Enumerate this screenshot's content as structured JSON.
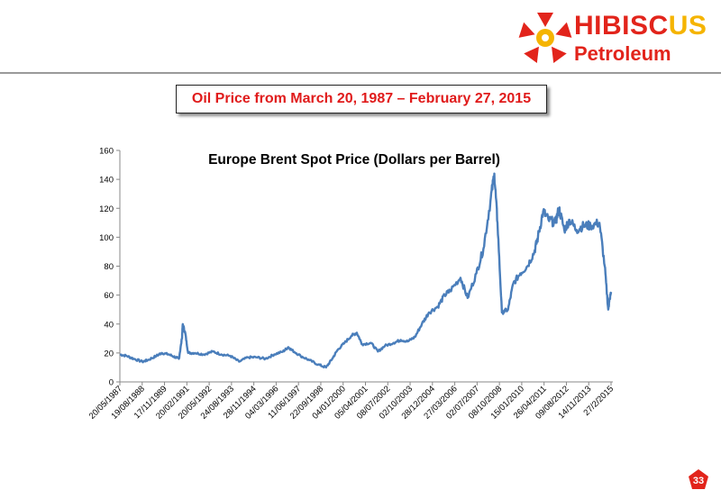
{
  "logo": {
    "word_main": "HIBISCUS",
    "word_main_red": "HIBISC",
    "word_main_yellow": "US",
    "word_sub": "Petroleum",
    "colors": {
      "red": "#e2241b",
      "yellow": "#f5b400"
    },
    "icon": "pentagon-flower-icon"
  },
  "slide": {
    "title": "Oil Price from March 20, 1987 – February 27, 2015",
    "page_number": "33"
  },
  "chart_data": {
    "type": "line",
    "title": "Europe Brent Spot Price (Dollars per Barrel)",
    "xlabel": "",
    "ylabel": "",
    "ylim": [
      0,
      160
    ],
    "yticks": [
      0,
      20,
      40,
      60,
      80,
      100,
      120,
      140,
      160
    ],
    "grid": false,
    "legend": "none",
    "line_color": "#4a7ebb",
    "x_tick_labels": [
      "20/05/1987",
      "19/08/1988",
      "17/11/1989",
      "20/02/1991",
      "20/05/1992",
      "24/08/1993",
      "28/11/1994",
      "04/03/1996",
      "11/06/1997",
      "22/09/1998",
      "04/01/2000",
      "05/04/2001",
      "08/07/2002",
      "02/10/2003",
      "28/12/2004",
      "27/03/2006",
      "02/07/2007",
      "08/10/2008",
      "15/01/2010",
      "26/04/2011",
      "09/08/2012",
      "14/11/2013",
      "27/2/2015"
    ],
    "x_range": [
      1987.22,
      2015.16
    ],
    "x": [
      1987.22,
      1987.6,
      1988.0,
      1988.5,
      1988.8,
      1989.3,
      1989.6,
      1990.0,
      1990.4,
      1990.58,
      1990.75,
      1990.8,
      1990.95,
      1991.1,
      1991.5,
      1992.0,
      1992.5,
      1993.0,
      1993.5,
      1994.0,
      1994.5,
      1995.0,
      1995.5,
      1996.0,
      1996.5,
      1996.8,
      1997.0,
      1997.5,
      1998.0,
      1998.5,
      1998.95,
      1999.3,
      1999.6,
      2000.0,
      2000.4,
      2000.7,
      2001.0,
      2001.5,
      2001.9,
      2002.3,
      2002.8,
      2003.2,
      2003.6,
      2004.0,
      2004.4,
      2004.8,
      2005.3,
      2005.7,
      2006.0,
      2006.6,
      2007.0,
      2007.5,
      2007.9,
      2008.3,
      2008.52,
      2008.7,
      2008.95,
      2009.3,
      2009.6,
      2010.0,
      2010.4,
      2010.8,
      2011.0,
      2011.3,
      2011.6,
      2012.0,
      2012.2,
      2012.5,
      2012.8,
      2013.2,
      2013.6,
      2014.0,
      2014.5,
      2014.8,
      2015.0,
      2015.05,
      2015.16
    ],
    "y": [
      19,
      18,
      16,
      14,
      15,
      18,
      20,
      19,
      17,
      16,
      30,
      40,
      33,
      20,
      20,
      19,
      21,
      19,
      18,
      14,
      17,
      17,
      16,
      19,
      21,
      24,
      22,
      18,
      15,
      12,
      10,
      16,
      22,
      27,
      32,
      34,
      26,
      27,
      21,
      25,
      27,
      29,
      28,
      31,
      40,
      48,
      52,
      60,
      63,
      72,
      58,
      75,
      92,
      125,
      144,
      110,
      48,
      50,
      68,
      75,
      80,
      90,
      100,
      118,
      112,
      110,
      120,
      105,
      112,
      105,
      108,
      108,
      110,
      80,
      50,
      55,
      62
    ]
  }
}
